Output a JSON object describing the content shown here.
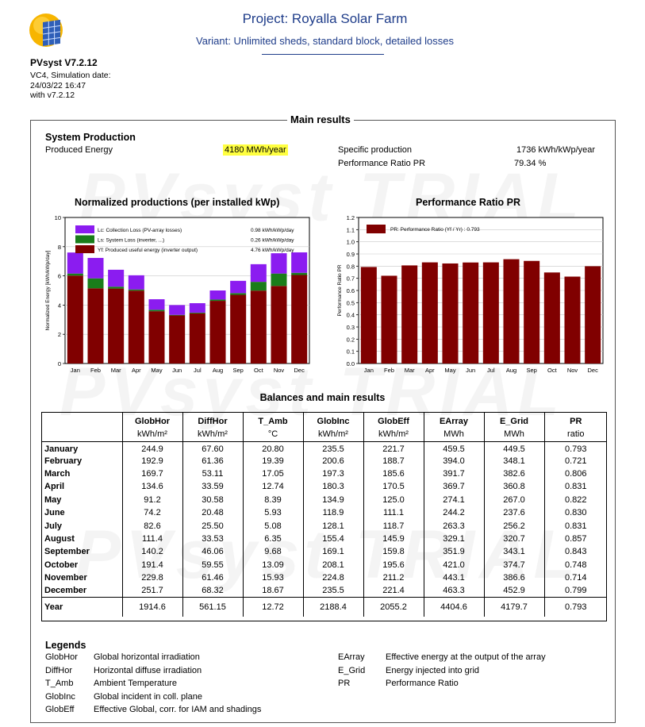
{
  "header": {
    "software": "PVsyst V7.2.12",
    "info_lines": [
      "VC4, Simulation date:",
      "24/03/22 16:47",
      "with v7.2.12"
    ],
    "project_title": "Project: Royalla Solar Farm",
    "variant": "Variant: Unlimited sheds, standard block, detailed losses"
  },
  "main_results": {
    "title": "Main results",
    "system_production_title": "System Production",
    "produced_energy_label": "Produced Energy",
    "produced_energy_value": "4180 MWh/year",
    "specific_production_label": "Specific production",
    "specific_production_value": "1736 kWh/kWp/year",
    "pr_label": "Performance Ratio PR",
    "pr_value": "79.34 %"
  },
  "watermarks": [
    "PVsyst TRIAL",
    "PVsyst TRIAL",
    "PVsyst TRIAL"
  ],
  "colors": {
    "lc": "#8b1cf0",
    "ls": "#1a7d1a",
    "yf": "#800000",
    "pr": "#800000",
    "highlight": "#ffff40",
    "title_blue": "#1f3d8a"
  },
  "chart_data": [
    {
      "type": "bar",
      "title": "Normalized productions (per installed kWp)",
      "ylabel": "Normalized Energy [kWh/kWp/day]",
      "ylim": [
        0,
        10
      ],
      "yticks": [
        "0",
        "2",
        "4",
        "6",
        "8",
        "10"
      ],
      "stacked": true,
      "grid": true,
      "categories": [
        "Jan",
        "Feb",
        "Mar",
        "Apr",
        "May",
        "Jun",
        "Jul",
        "Aug",
        "Sep",
        "Oct",
        "Nov",
        "Dec"
      ],
      "legend": [
        {
          "label": "Lc: Collection Loss (PV-array losses)",
          "value": "0.98 kWh/kWp/day"
        },
        {
          "label": "Ls: System Loss  (inverter, ...)",
          "value": "0.26 kWh/kWp/day"
        },
        {
          "label": "Yf: Produced useful energy  (inverter output)",
          "value": "4.76 kWh/kWp/day"
        }
      ],
      "series": [
        {
          "name": "Yf",
          "values": [
            6.02,
            5.15,
            5.13,
            4.99,
            3.58,
            3.29,
            3.43,
            4.29,
            4.7,
            4.99,
            5.31,
            6.06
          ]
        },
        {
          "name": "Ls",
          "values": [
            0.14,
            0.68,
            0.13,
            0.08,
            0.1,
            0.04,
            0.05,
            0.09,
            0.12,
            0.6,
            0.85,
            0.15
          ]
        },
        {
          "name": "Lc",
          "values": [
            1.44,
            1.4,
            1.16,
            0.97,
            0.72,
            0.67,
            0.65,
            0.62,
            0.84,
            1.21,
            1.39,
            1.4
          ]
        }
      ]
    },
    {
      "type": "bar",
      "title": "Performance Ratio PR",
      "ylabel": "Performance Ratio PR",
      "ylim": [
        0,
        1.2
      ],
      "yticks": [
        "0.0",
        "0.1",
        "0.2",
        "0.3",
        "0.4",
        "0.5",
        "0.6",
        "0.7",
        "0.8",
        "0.9",
        "1.0",
        "1.1",
        "1.2"
      ],
      "grid": true,
      "categories": [
        "Jan",
        "Feb",
        "Mar",
        "Apr",
        "May",
        "Jun",
        "Jul",
        "Aug",
        "Sep",
        "Oct",
        "Nov",
        "Dec"
      ],
      "legend": [
        {
          "label": "PR: Performance Ratio (Yf / Yr) :  0.793"
        }
      ],
      "series": [
        {
          "name": "PR",
          "values": [
            0.793,
            0.721,
            0.806,
            0.831,
            0.822,
            0.83,
            0.831,
            0.857,
            0.843,
            0.748,
            0.714,
            0.799
          ]
        }
      ]
    },
    {
      "type": "table",
      "title": "Balances and main results",
      "columns": [
        {
          "name": "GlobHor",
          "unit": "kWh/m²"
        },
        {
          "name": "DiffHor",
          "unit": "kWh/m²"
        },
        {
          "name": "T_Amb",
          "unit": "°C"
        },
        {
          "name": "GlobInc",
          "unit": "kWh/m²"
        },
        {
          "name": "GlobEff",
          "unit": "kWh/m²"
        },
        {
          "name": "EArray",
          "unit": "MWh"
        },
        {
          "name": "E_Grid",
          "unit": "MWh"
        },
        {
          "name": "PR",
          "unit": "ratio"
        }
      ],
      "rows": [
        {
          "label": "January",
          "values": [
            "244.9",
            "67.60",
            "20.80",
            "235.5",
            "221.7",
            "459.5",
            "449.5",
            "0.793"
          ]
        },
        {
          "label": "February",
          "values": [
            "192.9",
            "61.36",
            "19.39",
            "200.6",
            "188.7",
            "394.0",
            "348.1",
            "0.721"
          ]
        },
        {
          "label": "March",
          "values": [
            "169.7",
            "53.11",
            "17.05",
            "197.3",
            "185.6",
            "391.7",
            "382.6",
            "0.806"
          ]
        },
        {
          "label": "April",
          "values": [
            "134.6",
            "33.59",
            "12.74",
            "180.3",
            "170.5",
            "369.7",
            "360.8",
            "0.831"
          ]
        },
        {
          "label": "May",
          "values": [
            "91.2",
            "30.58",
            "8.39",
            "134.9",
            "125.0",
            "274.1",
            "267.0",
            "0.822"
          ]
        },
        {
          "label": "June",
          "values": [
            "74.2",
            "20.48",
            "5.93",
            "118.9",
            "111.1",
            "244.2",
            "237.6",
            "0.830"
          ]
        },
        {
          "label": "July",
          "values": [
            "82.6",
            "25.50",
            "5.08",
            "128.1",
            "118.7",
            "263.3",
            "256.2",
            "0.831"
          ]
        },
        {
          "label": "August",
          "values": [
            "111.4",
            "33.53",
            "6.35",
            "155.4",
            "145.9",
            "329.1",
            "320.7",
            "0.857"
          ]
        },
        {
          "label": "September",
          "values": [
            "140.2",
            "46.06",
            "9.68",
            "169.1",
            "159.8",
            "351.9",
            "343.1",
            "0.843"
          ]
        },
        {
          "label": "October",
          "values": [
            "191.4",
            "59.55",
            "13.09",
            "208.1",
            "195.6",
            "421.0",
            "374.7",
            "0.748"
          ]
        },
        {
          "label": "November",
          "values": [
            "229.8",
            "61.46",
            "15.93",
            "224.8",
            "211.2",
            "443.1",
            "386.6",
            "0.714"
          ]
        },
        {
          "label": "December",
          "values": [
            "251.7",
            "68.32",
            "18.67",
            "235.5",
            "221.4",
            "463.3",
            "452.9",
            "0.799"
          ]
        }
      ],
      "total": {
        "label": "Year",
        "values": [
          "1914.6",
          "561.15",
          "12.72",
          "2188.4",
          "2055.2",
          "4404.6",
          "4179.7",
          "0.793"
        ]
      }
    }
  ],
  "legends": {
    "title": "Legends",
    "left": [
      {
        "abbr": "GlobHor",
        "desc": "Global horizontal irradiation"
      },
      {
        "abbr": "DiffHor",
        "desc": "Horizontal diffuse irradiation"
      },
      {
        "abbr": "T_Amb",
        "desc": "Ambient Temperature"
      },
      {
        "abbr": "GlobInc",
        "desc": "Global incident in coll. plane"
      },
      {
        "abbr": "GlobEff",
        "desc": "Effective Global, corr. for IAM and shadings"
      }
    ],
    "right": [
      {
        "abbr": "EArray",
        "desc": "Effective energy at the output of the array"
      },
      {
        "abbr": "E_Grid",
        "desc": "Energy injected into grid"
      },
      {
        "abbr": "PR",
        "desc": "Performance Ratio"
      }
    ]
  }
}
